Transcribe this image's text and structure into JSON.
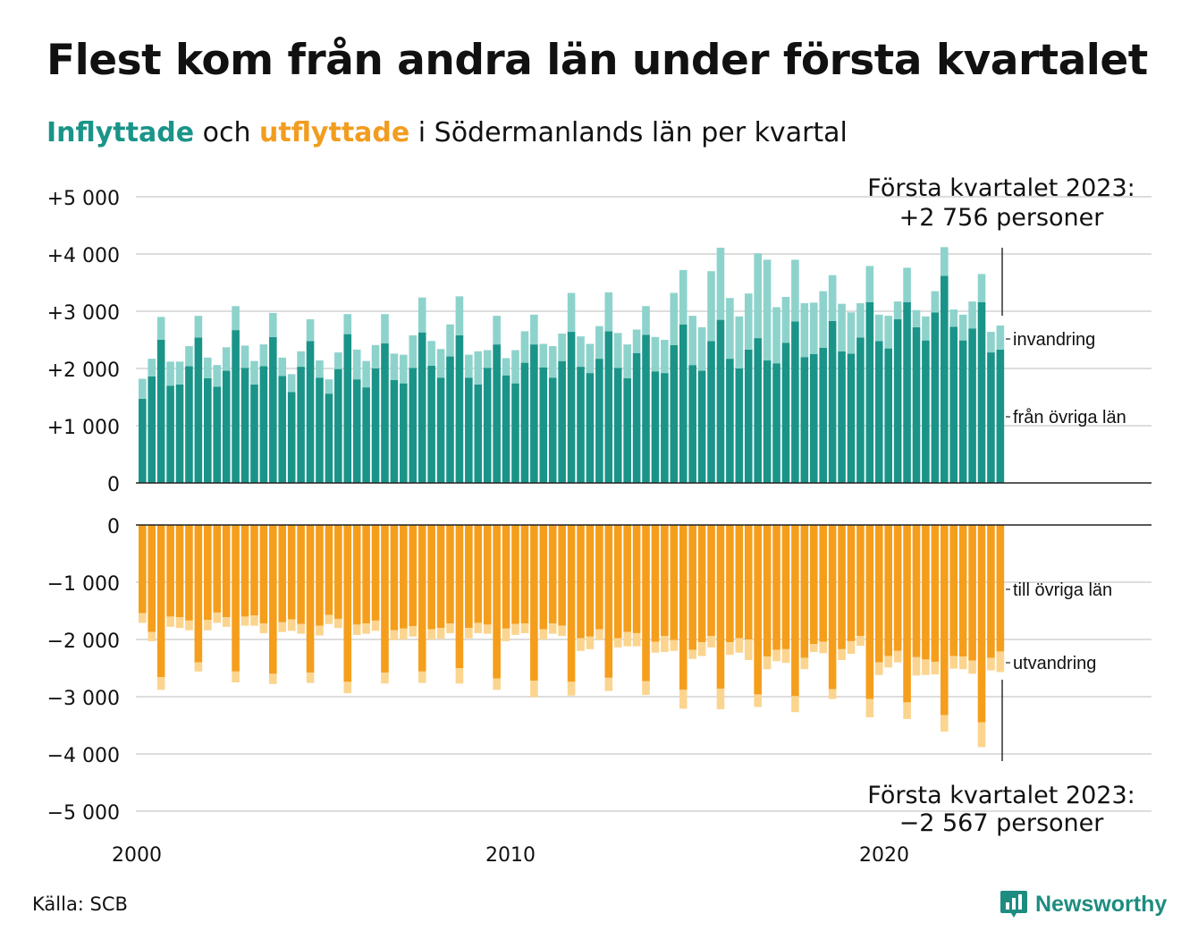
{
  "header": {
    "title": "Flest kom från andra län under första kvartalet",
    "subtitle_in": "Inflyttade",
    "subtitle_mid": " och ",
    "subtitle_out": "utflyttade",
    "subtitle_rest": " i Södermanlands län per kvartal"
  },
  "footer": {
    "source": "Källa: SCB",
    "brand": "Newsworthy"
  },
  "colors": {
    "in_dark": "#1a9488",
    "in_light": "#8dd3cc",
    "out_dark": "#f59e1c",
    "out_light": "#fbd58f",
    "grid": "#dddddd",
    "baseline": "#222222"
  },
  "chart_data": {
    "type": "bar",
    "stacked": true,
    "quarters_start": "2000 Q1",
    "quarters_end": "2023 Q1",
    "x_ticks": [
      "2000",
      "2010",
      "2020"
    ],
    "top_panel": {
      "y_ticks": [
        "+5 000",
        "+4 000",
        "+3 000",
        "+2 000",
        "+1 000",
        "0"
      ],
      "ylim": [
        0,
        5000
      ],
      "series": [
        {
          "name": "från övriga län",
          "values": [
            1470,
            1860,
            2500,
            1700,
            1720,
            2040,
            2540,
            1830,
            1680,
            1960,
            2670,
            2010,
            1720,
            2040,
            2550,
            1870,
            1590,
            2030,
            2480,
            1840,
            1560,
            1990,
            2600,
            1810,
            1670,
            2000,
            2440,
            1800,
            1740,
            2010,
            2630,
            2050,
            1840,
            2210,
            2580,
            1840,
            1720,
            2010,
            2420,
            1880,
            1740,
            2100,
            2420,
            2020,
            1840,
            2130,
            2640,
            2030,
            1920,
            2170,
            2650,
            2010,
            1830,
            2270,
            2590,
            1950,
            1920,
            2410,
            2770,
            2060,
            1960,
            2480,
            2850,
            2170,
            2000,
            2330,
            2530,
            2140,
            2090,
            2450,
            2820,
            2200,
            2250,
            2360,
            2830,
            2300,
            2260,
            2540,
            3160,
            2480,
            2350,
            2860,
            3160,
            2720,
            2490,
            2980,
            3620,
            2730,
            2490,
            2700,
            3160,
            2280,
            2330
          ]
        },
        {
          "name": "invandring",
          "values": [
            350,
            310,
            400,
            420,
            400,
            350,
            380,
            360,
            380,
            410,
            420,
            390,
            410,
            380,
            420,
            320,
            310,
            270,
            380,
            300,
            250,
            290,
            350,
            520,
            460,
            410,
            510,
            460,
            500,
            570,
            610,
            430,
            500,
            560,
            680,
            400,
            580,
            310,
            500,
            300,
            580,
            550,
            520,
            410,
            550,
            480,
            680,
            530,
            510,
            570,
            680,
            610,
            590,
            410,
            500,
            600,
            580,
            910,
            950,
            860,
            760,
            1220,
            1260,
            1060,
            910,
            980,
            1480,
            1760,
            980,
            800,
            1080,
            940,
            900,
            990,
            800,
            830,
            720,
            600,
            630,
            460,
            570,
            310,
            600,
            300,
            420,
            370,
            500,
            300,
            450,
            470,
            490,
            360,
            420
          ]
        }
      ],
      "annotation": "Första kvartalet 2023:\n+2 756 personer"
    },
    "bottom_panel": {
      "y_ticks": [
        "0",
        "−1 000",
        "−2 000",
        "−3 000",
        "−4 000",
        "−5 000"
      ],
      "ylim": [
        -5000,
        0
      ],
      "series": [
        {
          "name": "till övriga län",
          "values": [
            -1540,
            -1870,
            -2660,
            -1600,
            -1610,
            -1670,
            -2400,
            -1660,
            -1530,
            -1610,
            -2560,
            -1600,
            -1580,
            -1720,
            -2600,
            -1700,
            -1650,
            -1730,
            -2580,
            -1760,
            -1570,
            -1640,
            -2740,
            -1740,
            -1720,
            -1670,
            -2580,
            -1840,
            -1810,
            -1770,
            -2560,
            -1820,
            -1800,
            -1720,
            -2500,
            -1800,
            -1710,
            -1740,
            -2680,
            -1810,
            -1730,
            -1720,
            -2720,
            -1820,
            -1720,
            -1760,
            -2740,
            -1980,
            -1950,
            -1820,
            -2670,
            -1980,
            -1870,
            -1890,
            -2730,
            -2040,
            -1940,
            -2010,
            -2880,
            -2180,
            -2050,
            -1940,
            -2860,
            -2050,
            -1980,
            -2000,
            -2960,
            -2300,
            -2180,
            -2170,
            -2990,
            -2320,
            -2080,
            -2040,
            -2870,
            -2170,
            -2030,
            -1940,
            -3040,
            -2400,
            -2290,
            -2200,
            -3100,
            -2310,
            -2350,
            -2390,
            -3320,
            -2290,
            -2300,
            -2370,
            -3450,
            -2320,
            -2210
          ]
        },
        {
          "name": "utvandring",
          "values": [
            -170,
            -160,
            -220,
            -180,
            -190,
            -170,
            -160,
            -180,
            -180,
            -170,
            -190,
            -160,
            -180,
            -170,
            -180,
            -170,
            -200,
            -170,
            -180,
            -170,
            -160,
            -160,
            -200,
            -180,
            -180,
            -180,
            -190,
            -170,
            -190,
            -180,
            -200,
            -180,
            -190,
            -170,
            -270,
            -180,
            -180,
            -160,
            -200,
            -220,
            -190,
            -170,
            -290,
            -180,
            -180,
            -180,
            -240,
            -220,
            -220,
            -190,
            -230,
            -160,
            -250,
            -230,
            -240,
            -190,
            -280,
            -190,
            -330,
            -160,
            -240,
            -200,
            -360,
            -220,
            -250,
            -360,
            -220,
            -220,
            -200,
            -240,
            -280,
            -200,
            -140,
            -200,
            -170,
            -190,
            -220,
            -170,
            -320,
            -220,
            -200,
            -200,
            -290,
            -320,
            -270,
            -220,
            -290,
            -220,
            -220,
            -230,
            -430,
            -220,
            -360
          ]
        }
      ],
      "annotation": "Första kvartalet 2023:\n−2 567 personer"
    }
  }
}
